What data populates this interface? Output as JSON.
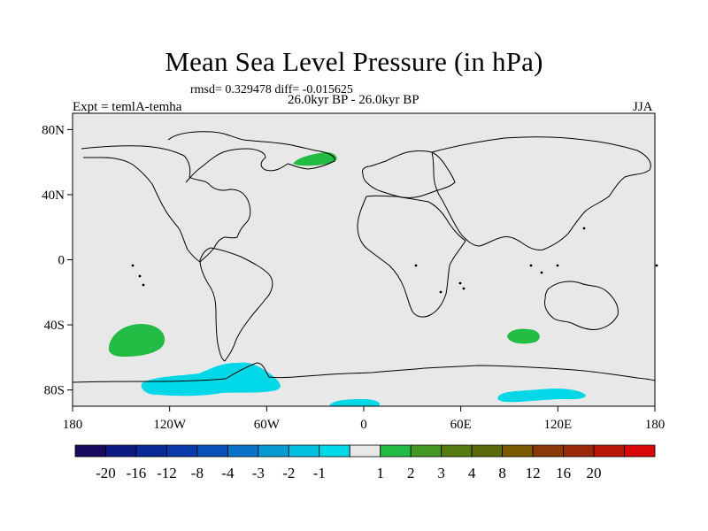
{
  "title": "Mean Sea Level Pressure (in hPa)",
  "stats": "rmsd= 0.329478 diff= -0.015625",
  "period": "26.0kyr BP - 26.0kyr BP",
  "left_label": "Expt = temlA-temha",
  "right_label": "JJA",
  "colors": {
    "background": "#e8e8e8",
    "land_outline": "#000000",
    "anomaly_positive_1_2": "#22bb44",
    "anomaly_negative_1_2": "#00d8e8"
  },
  "map": {
    "projection": "cylindrical-equidistant",
    "lon_range": [
      -180,
      180
    ],
    "lat_range": [
      -90,
      90
    ],
    "x_ticks": [
      "180",
      "120W",
      "60W",
      "0",
      "60E",
      "120E",
      "180"
    ],
    "y_ticks": [
      "80N",
      "40N",
      "0",
      "40S",
      "80S"
    ],
    "anomaly_regions": [
      {
        "name": "greenland-sea-positive",
        "sign": "positive",
        "lon": [
          -44,
          -20
        ],
        "lat": [
          60,
          67
        ]
      },
      {
        "name": "south-pacific-positive",
        "sign": "positive",
        "lon": [
          -158,
          -125
        ],
        "lat": [
          -56,
          -37
        ]
      },
      {
        "name": "south-indian-positive",
        "sign": "positive",
        "lon": [
          92,
          108
        ],
        "lat": [
          -49,
          -43
        ]
      },
      {
        "name": "antarctic-peninsula-negative",
        "sign": "negative",
        "lon": [
          -140,
          -45
        ],
        "lat": [
          -88,
          -60
        ]
      },
      {
        "name": "weddell-negative",
        "sign": "negative",
        "lon": [
          -10,
          20
        ],
        "lat": [
          -90,
          -85
        ]
      },
      {
        "name": "east-antarctic-negative",
        "sign": "negative",
        "lon": [
          87,
          140
        ],
        "lat": [
          -90,
          -78
        ]
      }
    ]
  },
  "colorbar": {
    "colors": [
      "#1a0a5e",
      "#0a1a80",
      "#0a2a9a",
      "#0a3aaa",
      "#0850b8",
      "#0a72c8",
      "#0a9ad2",
      "#00c0e0",
      "#00d8e8",
      "#e8e8e8",
      "#22bb44",
      "#449922",
      "#557a10",
      "#5a6a08",
      "#7a5a00",
      "#8a3a08",
      "#9a2808",
      "#b81408",
      "#d80808"
    ],
    "labels": [
      "-20",
      "-16",
      "-12",
      "-8",
      "-4",
      "-3",
      "-2",
      "-1",
      "1",
      "2",
      "3",
      "4",
      "8",
      "12",
      "16",
      "20"
    ]
  }
}
